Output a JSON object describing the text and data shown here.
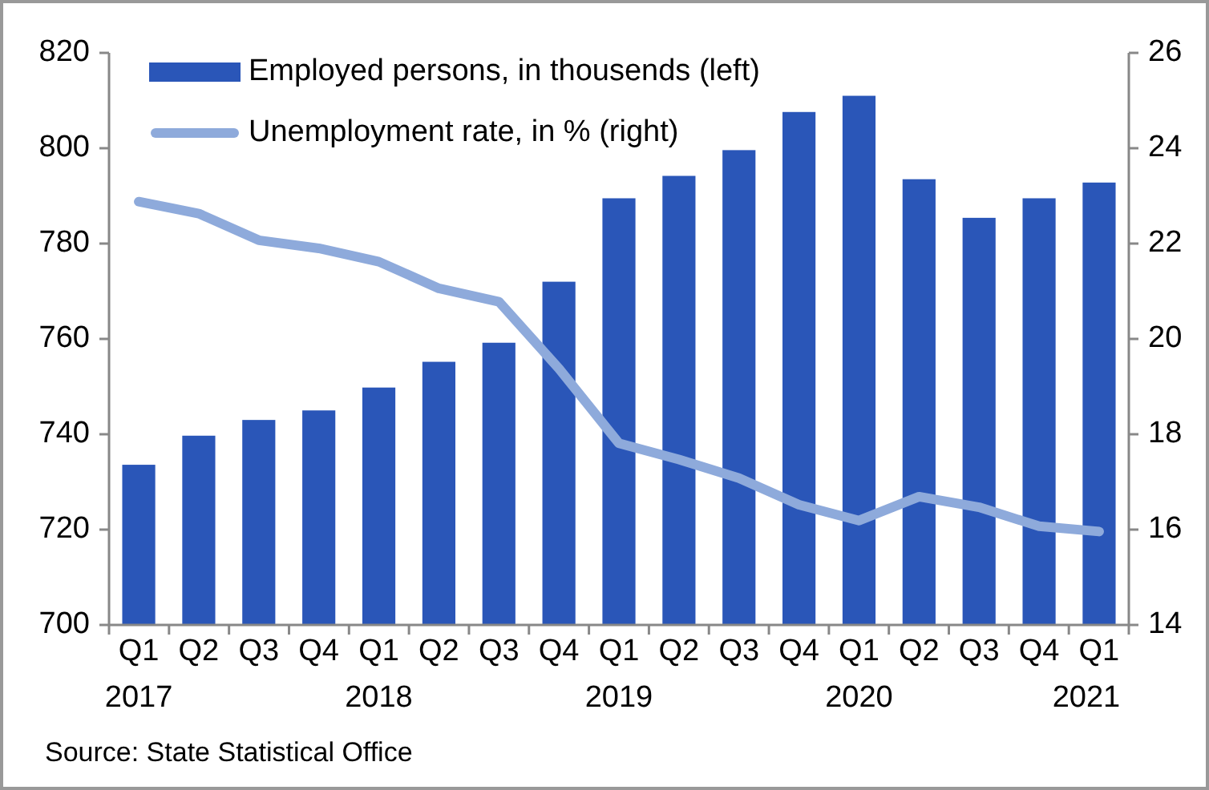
{
  "chart_data": {
    "type": "bar",
    "categories": [
      "Q1\n2017",
      "Q2",
      "Q3",
      "Q4",
      "Q1\n2018",
      "Q2",
      "Q3",
      "Q4",
      "Q1\n2019",
      "Q2",
      "Q3",
      "Q4",
      "Q1\n2020",
      "Q2",
      "Q3",
      "Q4",
      "Q1\n2021"
    ],
    "series": [
      {
        "name": "Employed persons, in thousends (left)",
        "color": "#2a56b8",
        "values": [
          733.6,
          739.7,
          743,
          745,
          749.8,
          755.2,
          759.2,
          772,
          789.5,
          794.2,
          799.6,
          807.6,
          811,
          793.5,
          785.4,
          789.5,
          792.8
        ]
      },
      {
        "name": "Unemployment rate, in % (right)",
        "type": "line",
        "axis": "y2",
        "color": "#8eaadb",
        "values": [
          22.88,
          22.63,
          22.07,
          21.9,
          21.62,
          21.06,
          20.78,
          19.38,
          17.81,
          17.47,
          17.08,
          16.52,
          16.19,
          16.69,
          16.47,
          16.07,
          15.96
        ]
      }
    ],
    "ylim": [
      700,
      820
    ],
    "yticks": [
      700,
      720,
      740,
      760,
      780,
      800,
      820
    ],
    "y2lim": [
      14,
      26
    ],
    "y2ticks": [
      14,
      16,
      18,
      20,
      22,
      24,
      26
    ],
    "grid": false,
    "legend": "top left",
    "marker": "none",
    "line_style": "solid",
    "annotations": [
      "Source: State Statistical Office"
    ]
  }
}
